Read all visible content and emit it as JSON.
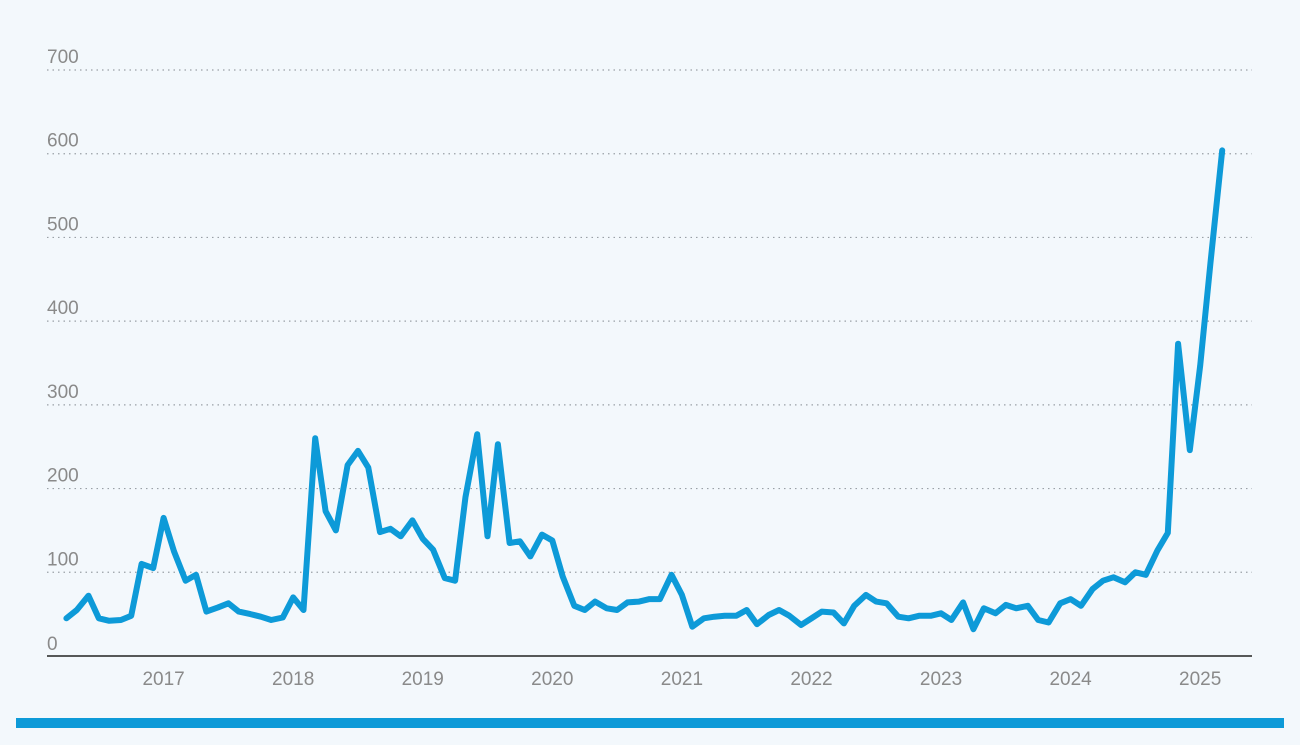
{
  "colors": {
    "background": "#f3f8fc",
    "line": "#0d9ad8",
    "bar": "#0d9ad8"
  },
  "chart_data": {
    "type": "line",
    "title": "",
    "xlabel": "",
    "ylabel": "",
    "xlim": [
      2016.1,
      2025.4
    ],
    "ylim": [
      0,
      700
    ],
    "grid": true,
    "y_ticks": [
      0,
      100,
      200,
      300,
      400,
      500,
      600,
      700
    ],
    "x_ticks": [
      2017,
      2018,
      2019,
      2020,
      2021,
      2022,
      2023,
      2024,
      2025
    ],
    "series": [
      {
        "x": [
          2016.25,
          2016.33,
          2016.42,
          2016.5,
          2016.58,
          2016.67,
          2016.75,
          2016.83,
          2016.92,
          2017.0,
          2017.08,
          2017.17,
          2017.25,
          2017.33,
          2017.42,
          2017.5,
          2017.58,
          2017.67,
          2017.75,
          2017.83,
          2017.92,
          2018.0,
          2018.08,
          2018.17,
          2018.25,
          2018.33,
          2018.42,
          2018.5,
          2018.58,
          2018.67,
          2018.75,
          2018.83,
          2018.92,
          2019.0,
          2019.08,
          2019.17,
          2019.25,
          2019.33,
          2019.42,
          2019.5,
          2019.58,
          2019.67,
          2019.75,
          2019.83,
          2019.92,
          2020.0,
          2020.08,
          2020.17,
          2020.25,
          2020.33,
          2020.42,
          2020.5,
          2020.58,
          2020.67,
          2020.75,
          2020.83,
          2020.92,
          2021.0,
          2021.08,
          2021.17,
          2021.25,
          2021.33,
          2021.42,
          2021.5,
          2021.58,
          2021.67,
          2021.75,
          2021.83,
          2021.92,
          2022.0,
          2022.08,
          2022.17,
          2022.25,
          2022.33,
          2022.42,
          2022.5,
          2022.58,
          2022.67,
          2022.75,
          2022.83,
          2022.92,
          2023.0,
          2023.08,
          2023.17,
          2023.25,
          2023.33,
          2023.42,
          2023.5,
          2023.58,
          2023.67,
          2023.75,
          2023.83,
          2023.92,
          2024.0,
          2024.08,
          2024.17,
          2024.25,
          2024.33,
          2024.42,
          2024.5,
          2024.58,
          2024.67,
          2024.75,
          2024.83,
          2024.92,
          2025.0,
          2025.08,
          2025.17
        ],
        "y": [
          45,
          55,
          72,
          45,
          42,
          43,
          48,
          110,
          105,
          165,
          125,
          90,
          97,
          53,
          58,
          63,
          53,
          50,
          47,
          43,
          46,
          70,
          55,
          260,
          173,
          150,
          228,
          245,
          225,
          148,
          152,
          143,
          162,
          140,
          127,
          93,
          90,
          190,
          265,
          143,
          253,
          135,
          137,
          119,
          145,
          138,
          95,
          60,
          55,
          65,
          57,
          55,
          64,
          65,
          68,
          68,
          97,
          73,
          35,
          45,
          47,
          48,
          48,
          55,
          38,
          49,
          55,
          48,
          37,
          45,
          53,
          52,
          39,
          60,
          73,
          65,
          63,
          47,
          45,
          48,
          48,
          51,
          43,
          64,
          32,
          57,
          51,
          61,
          57,
          60,
          43,
          40,
          63,
          68,
          60,
          80,
          90,
          94,
          88,
          100,
          97,
          126,
          147,
          373,
          246,
          347,
          470,
          604
        ]
      }
    ]
  }
}
